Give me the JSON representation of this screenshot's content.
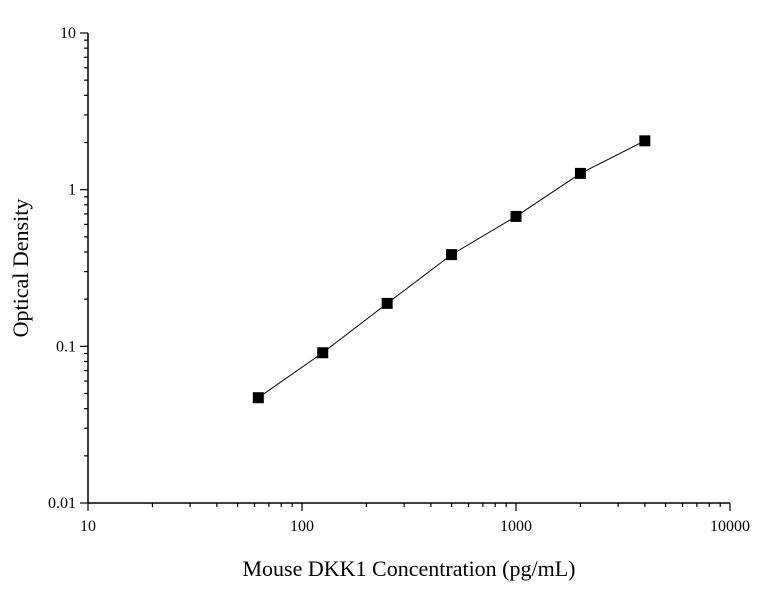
{
  "chart_data": {
    "type": "scatter",
    "title": "",
    "xlabel": "Mouse DKK1 Concentration (pg/mL)",
    "ylabel": "Optical Density",
    "x_scale": "log",
    "y_scale": "log",
    "xlim": [
      10,
      10000
    ],
    "ylim": [
      0.01,
      10
    ],
    "x_ticks": [
      {
        "value": 10,
        "label": "10"
      },
      {
        "value": 100,
        "label": "100"
      },
      {
        "value": 1000,
        "label": "1000"
      },
      {
        "value": 10000,
        "label": "10000"
      }
    ],
    "y_ticks": [
      {
        "value": 0.01,
        "label": "0.01"
      },
      {
        "value": 0.1,
        "label": "0.1"
      },
      {
        "value": 1,
        "label": "1"
      },
      {
        "value": 10,
        "label": "10"
      }
    ],
    "grid": false,
    "legend": "none",
    "series": [
      {
        "x": [
          62.5,
          125,
          250,
          500,
          1000,
          2000,
          4000
        ],
        "y": [
          0.047,
          0.091,
          0.188,
          0.385,
          0.675,
          1.27,
          2.05
        ],
        "marker": "square",
        "connected": true,
        "color": "#000000"
      }
    ]
  }
}
